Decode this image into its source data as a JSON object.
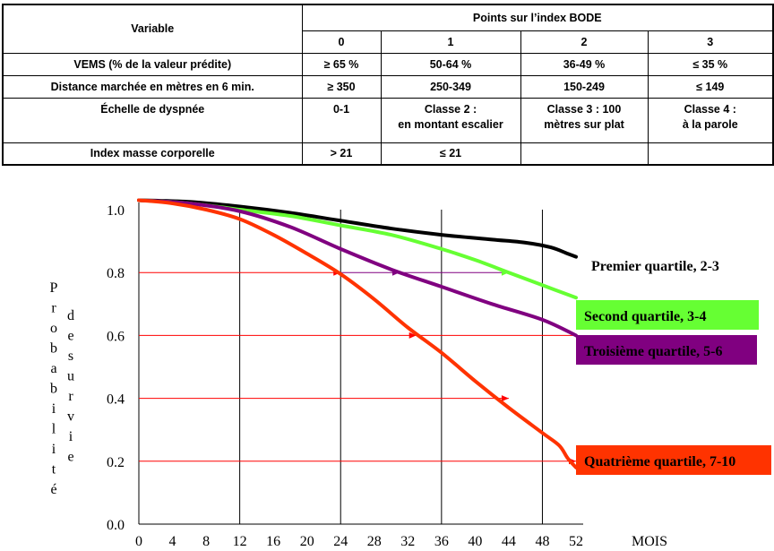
{
  "table": {
    "header_variable": "Variable",
    "header_points": "Points sur l’index BODE",
    "point_columns": [
      "0",
      "1",
      "2",
      "3"
    ],
    "rows": [
      {
        "label": "VEMS (% de la valeur prédite)",
        "cells": [
          "≥ 65 %",
          "50-64 %",
          "36-49 %",
          "≤ 35 %"
        ]
      },
      {
        "label": "Distance marchée en mètres en 6 min.",
        "cells": [
          "≥ 350",
          "250-349",
          "150-249",
          "≤ 149"
        ]
      },
      {
        "label": "Échelle de dyspnée",
        "cells": [
          "0-1",
          "Classe  2 :\nen montant escalier",
          "Classe  3 :    100\nmètres sur plat",
          "Classe  4 :\nà la parole"
        ]
      },
      {
        "label": "Index masse corporelle",
        "cells": [
          "> 21",
          "≤ 21",
          "",
          ""
        ]
      }
    ]
  },
  "chart_data": {
    "type": "line",
    "ylabel": "Probabilité de survie",
    "xlabel": "MOIS",
    "xlim": [
      0,
      52
    ],
    "ylim": [
      0.0,
      1.0
    ],
    "x_ticks": [
      0,
      4,
      8,
      12,
      16,
      20,
      24,
      28,
      32,
      36,
      40,
      44,
      48,
      52
    ],
    "y_ticks": [
      "0.0",
      "0.2",
      "0.4",
      "0.6",
      "0.8",
      "1.0"
    ],
    "vertical_gridlines": [
      12,
      24,
      36,
      48
    ],
    "series": [
      {
        "name": "Premier quartile, 2-3",
        "color": "#000000",
        "points": [
          [
            0,
            1.03
          ],
          [
            6,
            1.025
          ],
          [
            12,
            1.01
          ],
          [
            18,
            0.99
          ],
          [
            24,
            0.965
          ],
          [
            30,
            0.94
          ],
          [
            36,
            0.92
          ],
          [
            42,
            0.905
          ],
          [
            46,
            0.895
          ],
          [
            49,
            0.88
          ],
          [
            51,
            0.86
          ],
          [
            52,
            0.85
          ]
        ]
      },
      {
        "name": "Second quartile, 3-4",
        "color": "#66ff33",
        "points": [
          [
            0,
            1.03
          ],
          [
            6,
            1.02
          ],
          [
            12,
            1.0
          ],
          [
            18,
            0.98
          ],
          [
            24,
            0.95
          ],
          [
            30,
            0.92
          ],
          [
            36,
            0.875
          ],
          [
            40,
            0.84
          ],
          [
            44,
            0.8
          ],
          [
            48,
            0.76
          ],
          [
            52,
            0.72
          ]
        ]
      },
      {
        "name": "Troisième quartile, 5-6",
        "color": "#800080",
        "points": [
          [
            0,
            1.03
          ],
          [
            6,
            1.02
          ],
          [
            12,
            0.995
          ],
          [
            18,
            0.945
          ],
          [
            24,
            0.875
          ],
          [
            30,
            0.81
          ],
          [
            36,
            0.755
          ],
          [
            42,
            0.7
          ],
          [
            48,
            0.65
          ],
          [
            52,
            0.6
          ]
        ]
      },
      {
        "name": "Quatrième quartile, 7-10",
        "color": "#ff3300",
        "points": [
          [
            0,
            1.03
          ],
          [
            4,
            1.02
          ],
          [
            8,
            1.0
          ],
          [
            12,
            0.97
          ],
          [
            16,
            0.92
          ],
          [
            20,
            0.86
          ],
          [
            24,
            0.795
          ],
          [
            28,
            0.715
          ],
          [
            32,
            0.625
          ],
          [
            36,
            0.545
          ],
          [
            40,
            0.455
          ],
          [
            44,
            0.37
          ],
          [
            48,
            0.29
          ],
          [
            50,
            0.25
          ],
          [
            51,
            0.21
          ],
          [
            52,
            0.18
          ]
        ]
      }
    ],
    "reference_lines": [
      {
        "y": 0.8,
        "x_end": 24,
        "color": "#ff0000"
      },
      {
        "y": 0.8,
        "x_start": 24,
        "x_end": 44,
        "color": "#800080"
      },
      {
        "y": 0.6,
        "x_end": 52,
        "color": "#ff0000"
      },
      {
        "y": 0.4,
        "x_end": 44,
        "color": "#ff0000"
      },
      {
        "y": 0.2,
        "x_end": 52,
        "color": "#ff0000"
      }
    ],
    "arrowheads": [
      {
        "x": 24,
        "y": 0.8,
        "color": "#ff0000"
      },
      {
        "x": 31,
        "y": 0.8,
        "color": "#800080"
      },
      {
        "x": 44,
        "y": 0.8,
        "color": "#66ff33"
      },
      {
        "x": 33,
        "y": 0.6,
        "color": "#ff0000"
      },
      {
        "x": 44,
        "y": 0.4,
        "color": "#ff0000"
      },
      {
        "x": 52,
        "y": 0.2,
        "color": "#ff0000"
      }
    ],
    "legend": [
      {
        "label": "Premier quartile, 2-3",
        "background": "none",
        "text_color": "#000000"
      },
      {
        "label": "Second quartile, 3-4",
        "background": "#66ff33",
        "text_color": "#000000"
      },
      {
        "label": "Troisième quartile, 5-6",
        "background": "#800080",
        "text_color": "#000000"
      },
      {
        "label": "Quatrième quartile, 7-10",
        "background": "#ff3300",
        "text_color": "#000000"
      }
    ]
  }
}
